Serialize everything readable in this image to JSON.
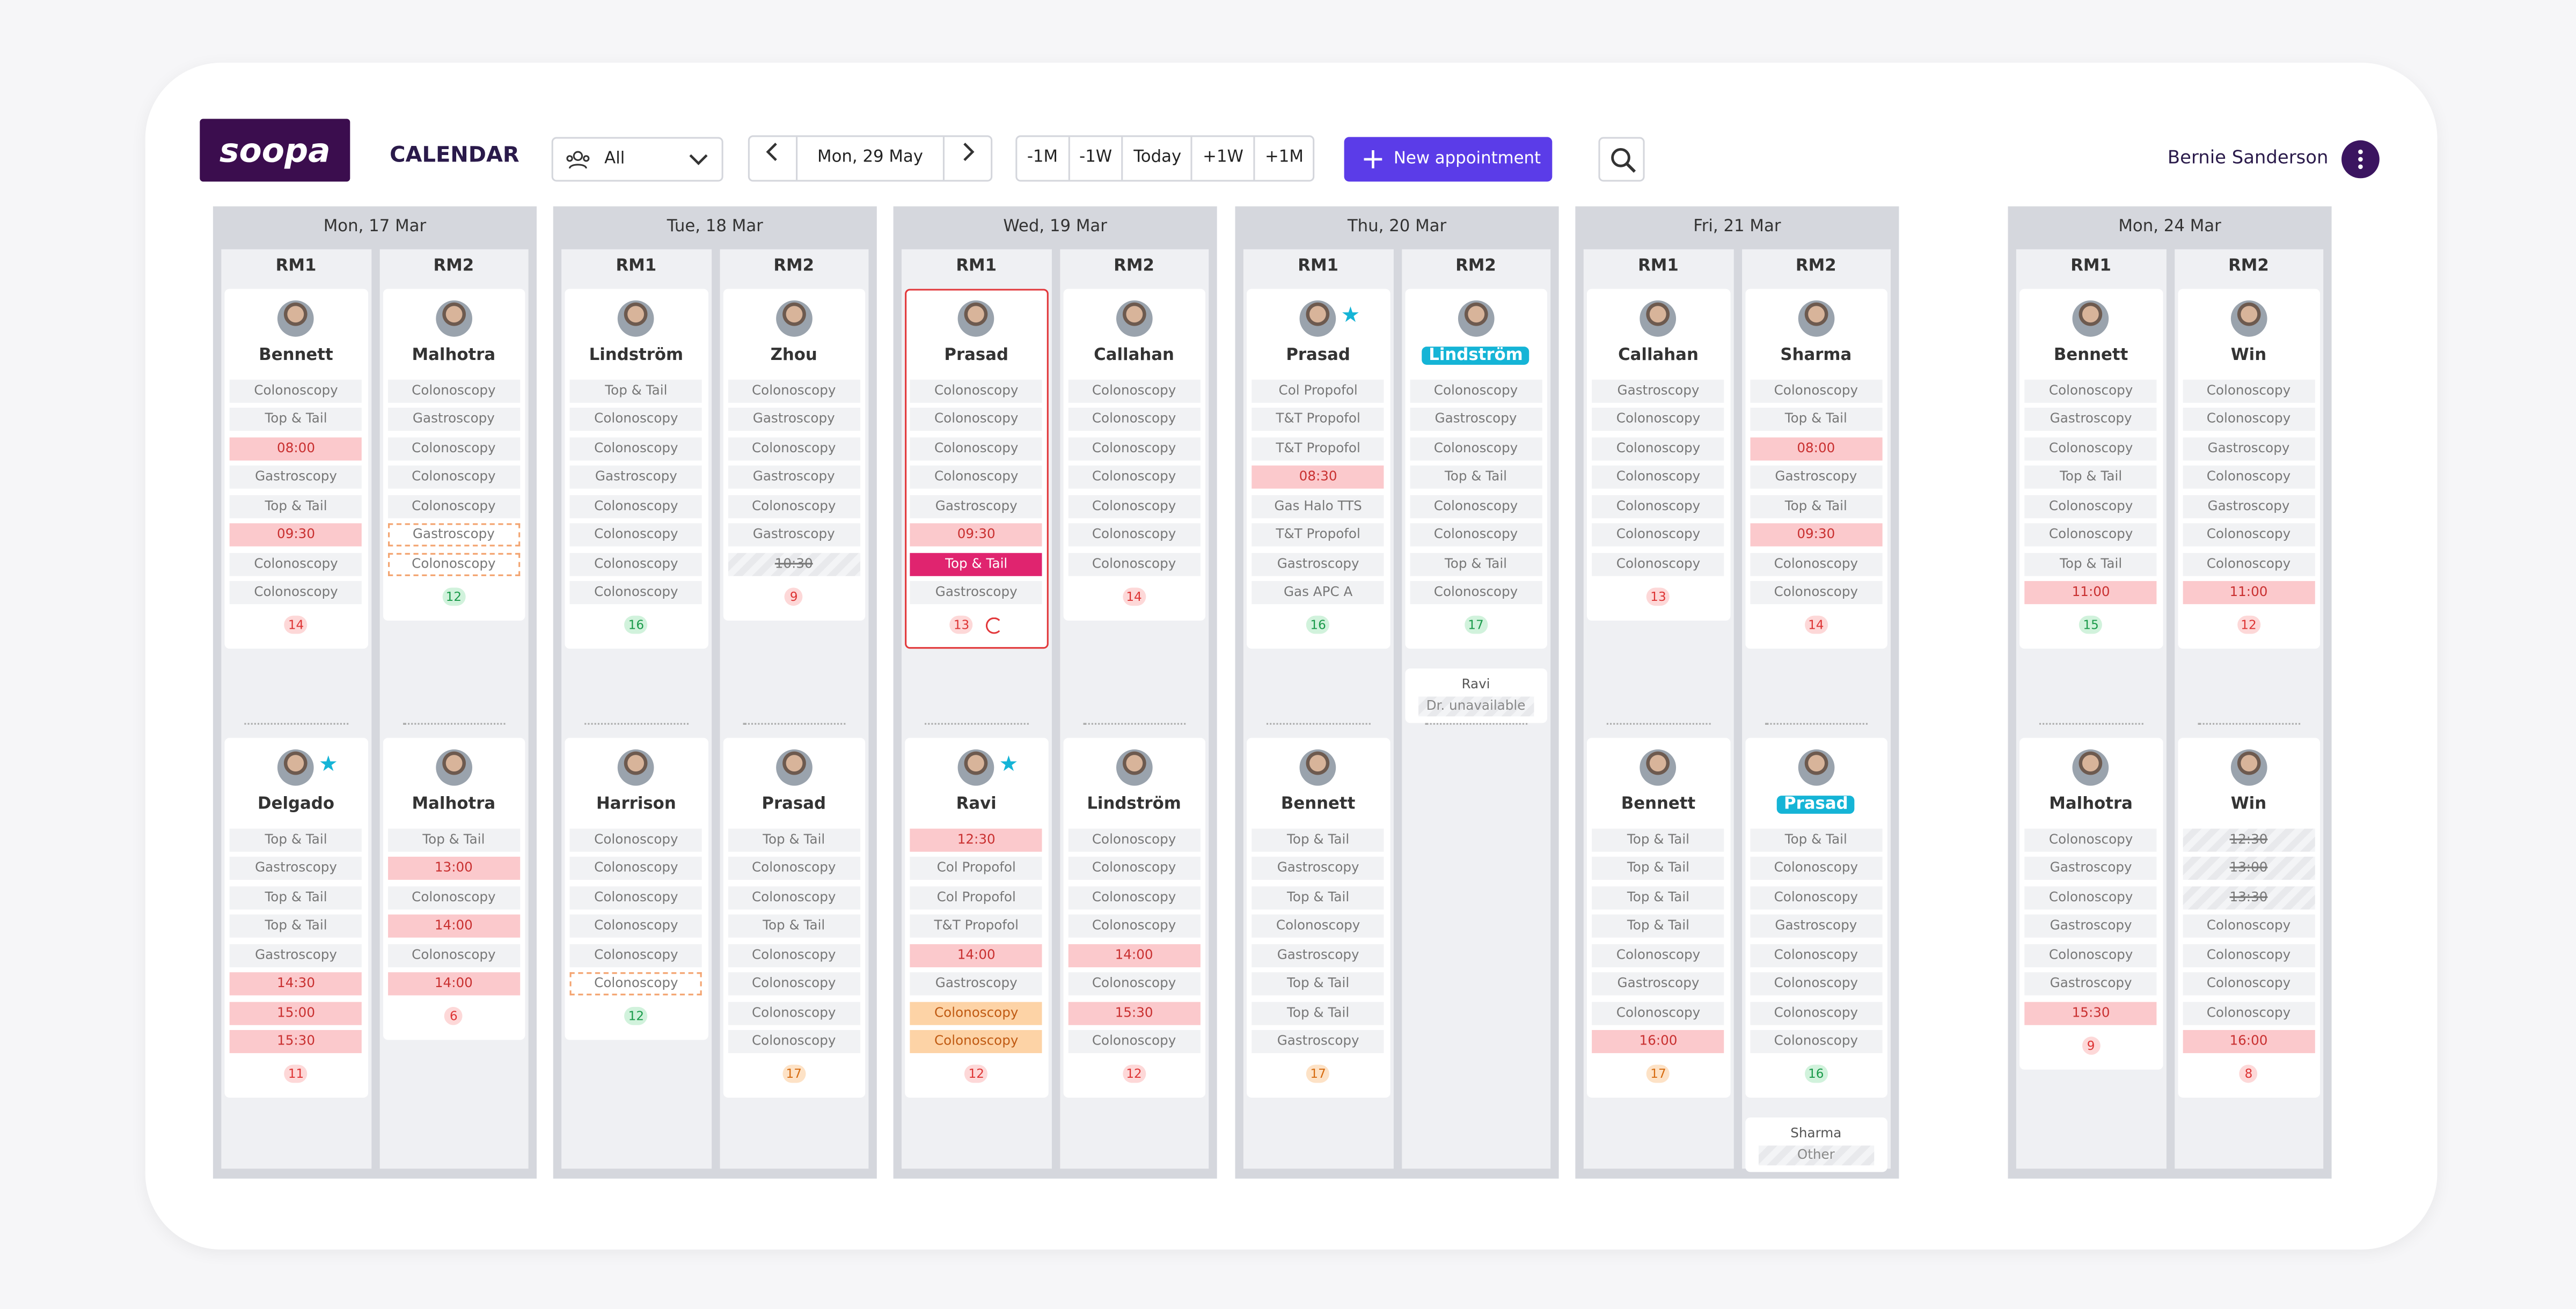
{
  "header": {
    "logo": "soopa",
    "title": "CALENDAR",
    "filter": "All",
    "date": "Mon, 29 May",
    "jumps": [
      "-1M",
      "-1W",
      "Today",
      "+1W",
      "+1M"
    ],
    "new_button": "New appointment",
    "user": "Bernie Sanderson"
  },
  "days": [
    {
      "label": "Mon, 17 Mar",
      "rooms": [
        {
          "name": "RM1",
          "sessions": [
            {
              "doctor": "Bennett",
              "slots": [
                "Colonoscopy",
                "Top & Tail",
                {
                  "text": "08:00",
                  "style": "time"
                },
                "Gastroscopy",
                "Top & Tail",
                {
                  "text": "09:30",
                  "style": "time"
                },
                "Colonoscopy",
                "Colonoscopy"
              ],
              "count": 14,
              "count_color": "red"
            },
            {
              "doctor": "Delgado",
              "star": true,
              "slots": [
                "Top & Tail",
                "Gastroscopy",
                "Top & Tail",
                "Top & Tail",
                "Gastroscopy",
                {
                  "text": "14:30",
                  "style": "time"
                },
                {
                  "text": "15:00",
                  "style": "time"
                },
                {
                  "text": "15:30",
                  "style": "time"
                }
              ],
              "count": 11,
              "count_color": "red"
            }
          ]
        },
        {
          "name": "RM2",
          "sessions": [
            {
              "doctor": "Malhotra",
              "slots": [
                "Colonoscopy",
                "Gastroscopy",
                "Colonoscopy",
                "Colonoscopy",
                "Colonoscopy",
                {
                  "text": "Gastroscopy",
                  "style": "dashed"
                },
                {
                  "text": "Colonoscopy",
                  "style": "dashed"
                }
              ],
              "count": 12,
              "count_color": "green"
            },
            {
              "doctor": "Malhotra",
              "slots": [
                "Top & Tail",
                {
                  "text": "13:00",
                  "style": "time"
                },
                "Colonoscopy",
                {
                  "text": "14:00",
                  "style": "time"
                },
                "Colonoscopy",
                {
                  "text": "14:00",
                  "style": "time"
                }
              ],
              "count": 6,
              "count_color": "red"
            }
          ]
        }
      ]
    },
    {
      "label": "Tue, 18 Mar",
      "rooms": [
        {
          "name": "RM1",
          "sessions": [
            {
              "doctor": "Lindström",
              "slots": [
                "Top & Tail",
                "Colonoscopy",
                "Colonoscopy",
                "Gastroscopy",
                "Colonoscopy",
                "Colonoscopy",
                "Colonoscopy",
                "Colonoscopy"
              ],
              "count": 16,
              "count_color": "green"
            },
            {
              "doctor": "Harrison",
              "slots": [
                "Colonoscopy",
                "Colonoscopy",
                "Colonoscopy",
                "Colonoscopy",
                "Colonoscopy",
                {
                  "text": "Colonoscopy",
                  "style": "dashed"
                }
              ],
              "count": 12,
              "count_color": "green"
            }
          ]
        },
        {
          "name": "RM2",
          "sessions": [
            {
              "doctor": "Zhou",
              "slots": [
                "Colonoscopy",
                "Gastroscopy",
                "Colonoscopy",
                "Gastroscopy",
                "Colonoscopy",
                "Gastroscopy",
                {
                  "text": "10:30",
                  "style": "struck"
                }
              ],
              "count": 9,
              "count_color": "red"
            },
            {
              "doctor": "Prasad",
              "slots": [
                "Top & Tail",
                "Colonoscopy",
                "Colonoscopy",
                "Top & Tail",
                "Colonoscopy",
                "Colonoscopy",
                "Colonoscopy",
                "Colonoscopy"
              ],
              "count": 17,
              "count_color": "orange"
            }
          ]
        }
      ]
    },
    {
      "label": "Wed, 19 Mar",
      "rooms": [
        {
          "name": "RM1",
          "sessions": [
            {
              "doctor": "Prasad",
              "selected": true,
              "refresh": true,
              "slots": [
                "Colonoscopy",
                "Colonoscopy",
                "Colonoscopy",
                "Colonoscopy",
                "Gastroscopy",
                {
                  "text": "09:30",
                  "style": "time"
                },
                {
                  "text": "Top & Tail",
                  "style": "highlight"
                },
                "Gastroscopy"
              ],
              "count": 13,
              "count_color": "red"
            },
            {
              "doctor": "Ravi",
              "star": true,
              "slots": [
                {
                  "text": "12:30",
                  "style": "time"
                },
                "Col Propofol",
                "Col Propofol",
                "T&T Propofol",
                {
                  "text": "14:00",
                  "style": "time"
                },
                "Gastroscopy",
                {
                  "text": "Colonoscopy",
                  "style": "orange"
                },
                {
                  "text": "Colonoscopy",
                  "style": "orange"
                }
              ],
              "count": 12,
              "count_color": "red"
            }
          ]
        },
        {
          "name": "RM2",
          "sessions": [
            {
              "doctor": "Callahan",
              "slots": [
                "Colonoscopy",
                "Colonoscopy",
                "Colonoscopy",
                "Colonoscopy",
                "Colonoscopy",
                "Colonoscopy",
                "Colonoscopy"
              ],
              "count": 14,
              "count_color": "red"
            },
            {
              "doctor": "Lindström",
              "slots": [
                "Colonoscopy",
                "Colonoscopy",
                "Colonoscopy",
                "Colonoscopy",
                {
                  "text": "14:00",
                  "style": "time"
                },
                "Colonoscopy",
                {
                  "text": "15:30",
                  "style": "time"
                },
                "Colonoscopy"
              ],
              "count": 12,
              "count_color": "red"
            }
          ]
        }
      ]
    },
    {
      "label": "Thu, 20 Mar",
      "rooms": [
        {
          "name": "RM1",
          "sessions": [
            {
              "doctor": "Prasad",
              "star": true,
              "slots": [
                "Col Propofol",
                "T&T Propofol",
                "T&T Propofol",
                {
                  "text": "08:30",
                  "style": "time"
                },
                "Gas Halo TTS",
                "T&T Propofol",
                "Gastroscopy",
                "Gas APC A"
              ],
              "count": 16,
              "count_color": "green"
            },
            {
              "doctor": "Bennett",
              "slots": [
                "Top & Tail",
                "Gastroscopy",
                "Top & Tail",
                "Colonoscopy",
                "Gastroscopy",
                "Top & Tail",
                "Top & Tail",
                "Gastroscopy"
              ],
              "count": 17,
              "count_color": "orange"
            }
          ]
        },
        {
          "name": "RM2",
          "sessions": [
            {
              "doctor": "Lindström",
              "badge": true,
              "slots": [
                "Colonoscopy",
                "Gastroscopy",
                "Colonoscopy",
                "Top & Tail",
                "Colonoscopy",
                "Colonoscopy",
                "Top & Tail",
                "Colonoscopy"
              ],
              "count": 17,
              "count_color": "green"
            }
          ],
          "note": {
            "name": "Ravi",
            "text": "Dr. unavailable"
          }
        }
      ]
    },
    {
      "label": "Fri, 21 Mar",
      "rooms": [
        {
          "name": "RM1",
          "sessions": [
            {
              "doctor": "Callahan",
              "slots": [
                "Gastroscopy",
                "Colonoscopy",
                "Colonoscopy",
                "Colonoscopy",
                "Colonoscopy",
                "Colonoscopy",
                "Colonoscopy"
              ],
              "count": 13,
              "count_color": "red"
            },
            {
              "doctor": "Bennett",
              "slots": [
                "Top & Tail",
                "Top & Tail",
                "Top & Tail",
                "Top & Tail",
                "Colonoscopy",
                "Gastroscopy",
                "Colonoscopy",
                {
                  "text": "16:00",
                  "style": "time"
                }
              ],
              "count": 17,
              "count_color": "orange"
            }
          ]
        },
        {
          "name": "RM2",
          "sessions": [
            {
              "doctor": "Sharma",
              "slots": [
                "Colonoscopy",
                "Top & Tail",
                {
                  "text": "08:00",
                  "style": "time"
                },
                "Gastroscopy",
                "Top & Tail",
                {
                  "text": "09:30",
                  "style": "time"
                },
                "Colonoscopy",
                "Colonoscopy"
              ],
              "count": 14,
              "count_color": "red"
            },
            {
              "doctor": "Prasad",
              "badge": true,
              "slots": [
                "Top & Tail",
                "Colonoscopy",
                "Colonoscopy",
                "Gastroscopy",
                "Colonoscopy",
                "Colonoscopy",
                "Colonoscopy",
                "Colonoscopy"
              ],
              "count": 16,
              "count_color": "green"
            }
          ],
          "note": {
            "name": "Sharma",
            "text": "Other"
          }
        }
      ]
    },
    {
      "label": "Mon, 24 Mar",
      "rooms": [
        {
          "name": "RM1",
          "sessions": [
            {
              "doctor": "Bennett",
              "slots": [
                "Colonoscopy",
                "Gastroscopy",
                "Colonoscopy",
                "Top & Tail",
                "Colonoscopy",
                "Colonoscopy",
                "Top & Tail",
                {
                  "text": "11:00",
                  "style": "time"
                }
              ],
              "count": 15,
              "count_color": "green"
            },
            {
              "doctor": "Malhotra",
              "slots": [
                "Colonoscopy",
                "Gastroscopy",
                "Colonoscopy",
                "Gastroscopy",
                "Colonoscopy",
                "Gastroscopy",
                {
                  "text": "15:30",
                  "style": "time"
                }
              ],
              "count": 9,
              "count_color": "red"
            }
          ]
        },
        {
          "name": "RM2",
          "sessions": [
            {
              "doctor": "Win",
              "slots": [
                "Colonoscopy",
                "Colonoscopy",
                "Gastroscopy",
                "Colonoscopy",
                "Gastroscopy",
                "Colonoscopy",
                "Colonoscopy",
                {
                  "text": "11:00",
                  "style": "time"
                }
              ],
              "count": 12,
              "count_color": "red"
            },
            {
              "doctor": "Win",
              "slots": [
                {
                  "text": "12:30",
                  "style": "struck"
                },
                {
                  "text": "13:00",
                  "style": "struck"
                },
                {
                  "text": "13:30",
                  "style": "struck"
                },
                "Colonoscopy",
                "Colonoscopy",
                "Colonoscopy",
                "Colonoscopy",
                {
                  "text": "16:00",
                  "style": "time"
                }
              ],
              "count": 8,
              "count_color": "red"
            }
          ]
        }
      ]
    }
  ]
}
